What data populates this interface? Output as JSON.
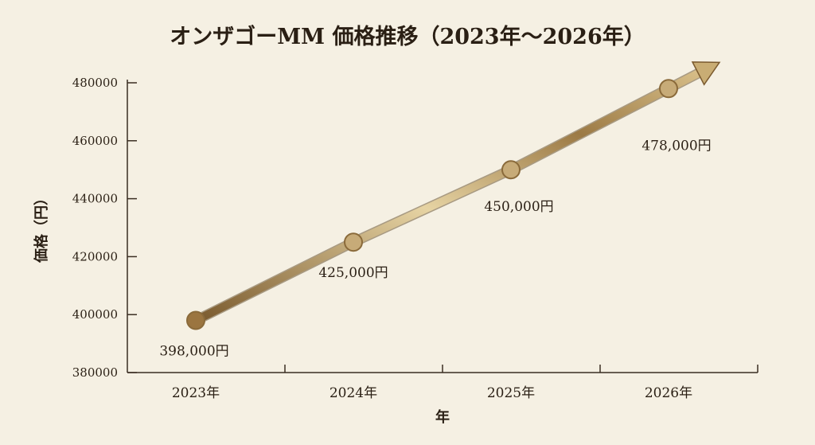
{
  "chart_data": {
    "type": "line",
    "title": "オンザゴーMM 価格推移（2023年〜2026年）",
    "xlabel": "年",
    "ylabel": "価格（円）",
    "categories": [
      "2023年",
      "2024年",
      "2025年",
      "2026年"
    ],
    "values": [
      398000,
      425000,
      450000,
      478000
    ],
    "data_labels": [
      "398,000円",
      "425,000円",
      "450,000円",
      "478,000円"
    ],
    "ylim": [
      380000,
      480000
    ],
    "yticks": [
      "380000",
      "400000",
      "420000",
      "440000",
      "460000",
      "480000"
    ],
    "grid": false,
    "legend": "none",
    "trend_arrow": true,
    "colors": {
      "line_dark": "#7a5a2e",
      "line_light": "#e6d3a3",
      "marker": "#a37f46",
      "axis": "#3a2e22",
      "background": "#f5f0e3"
    }
  }
}
